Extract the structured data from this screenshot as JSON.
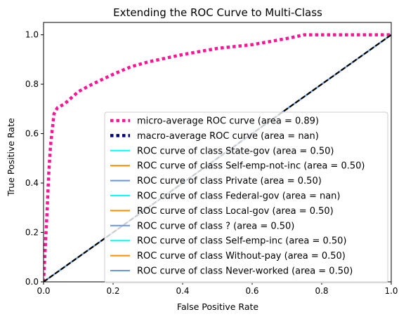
{
  "chart_data": {
    "type": "line",
    "title": "Extending the ROC Curve to Multi-Class",
    "xlabel": "False Positive Rate",
    "ylabel": "True Positive Rate",
    "xlim": [
      0.0,
      1.0
    ],
    "ylim": [
      0.0,
      1.05
    ],
    "xticks": [
      "0.0",
      "0.2",
      "0.4",
      "0.6",
      "0.8",
      "1.0"
    ],
    "yticks": [
      "0.0",
      "0.2",
      "0.4",
      "0.6",
      "0.8",
      "1.0"
    ],
    "grid": false,
    "legend_position": "lower right",
    "series": [
      {
        "name": "micro-average ROC curve (area = 0.89)",
        "color": "#ff1493",
        "style": "dotted",
        "x": [
          0.0,
          0.005,
          0.01,
          0.015,
          0.02,
          0.03,
          0.04,
          0.06,
          0.08,
          0.1,
          0.14,
          0.2,
          0.25,
          0.3,
          0.4,
          0.5,
          0.6,
          0.7,
          0.75,
          0.8,
          1.0
        ],
        "y": [
          0.0,
          0.14,
          0.28,
          0.44,
          0.55,
          0.68,
          0.705,
          0.72,
          0.745,
          0.77,
          0.8,
          0.84,
          0.87,
          0.89,
          0.92,
          0.945,
          0.96,
          0.985,
          1.0,
          1.0,
          1.0
        ]
      },
      {
        "name": "macro-average ROC curve (area = nan)",
        "color": "#000080",
        "style": "dotted",
        "x": [],
        "y": []
      },
      {
        "name": "ROC curve of class  State-gov (area = 0.50)",
        "color": "#00ffff",
        "style": "solid",
        "x": [
          0.0,
          1.0
        ],
        "y": [
          0.0,
          1.0
        ]
      },
      {
        "name": "ROC curve of class  Self-emp-not-inc (area = 0.50)",
        "color": "#ff8c00",
        "style": "solid",
        "x": [
          0.0,
          1.0
        ],
        "y": [
          0.0,
          1.0
        ]
      },
      {
        "name": "ROC curve of class  Private (area = 0.50)",
        "color": "#6495ed",
        "style": "solid",
        "x": [
          0.0,
          1.0
        ],
        "y": [
          0.0,
          1.0
        ]
      },
      {
        "name": "ROC curve of class  Federal-gov (area = nan)",
        "color": "#00ffff",
        "style": "solid",
        "x": [],
        "y": []
      },
      {
        "name": "ROC curve of class  Local-gov (area = 0.50)",
        "color": "#ff8c00",
        "style": "solid",
        "x": [
          0.0,
          1.0
        ],
        "y": [
          0.0,
          1.0
        ]
      },
      {
        "name": "ROC curve of class  ? (area = 0.50)",
        "color": "#6495ed",
        "style": "solid",
        "x": [
          0.0,
          1.0
        ],
        "y": [
          0.0,
          1.0
        ]
      },
      {
        "name": "ROC curve of class  Self-emp-inc (area = 0.50)",
        "color": "#00ffff",
        "style": "solid",
        "x": [
          0.0,
          1.0
        ],
        "y": [
          0.0,
          1.0
        ]
      },
      {
        "name": "ROC curve of class  Without-pay (area = 0.50)",
        "color": "#ff8c00",
        "style": "solid",
        "x": [
          0.0,
          1.0
        ],
        "y": [
          0.0,
          1.0
        ]
      },
      {
        "name": "ROC curve of class  Never-worked (area = 0.50)",
        "color": "#6495ed",
        "style": "solid",
        "x": [
          0.0,
          1.0
        ],
        "y": [
          0.0,
          1.0
        ]
      }
    ],
    "reference_line": {
      "color": "#000000",
      "style": "dashed",
      "x": [
        0.0,
        1.0
      ],
      "y": [
        0.0,
        1.0
      ]
    }
  }
}
